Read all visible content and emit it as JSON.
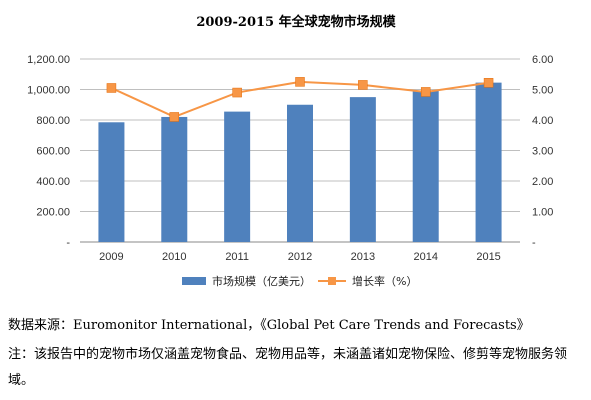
{
  "chart_data": {
    "type": "bar",
    "title": "2009-2015 年全球宠物市场规模",
    "categories": [
      "2009",
      "2010",
      "2011",
      "2012",
      "2013",
      "2014",
      "2015"
    ],
    "series": [
      {
        "name": "市场规模（亿美元）",
        "type": "bar",
        "axis": "left",
        "values": [
          785,
          820,
          855,
          900,
          950,
          990,
          1045
        ]
      },
      {
        "name": "增长率（%）",
        "type": "line",
        "axis": "right",
        "values": [
          5.05,
          4.1,
          4.9,
          5.25,
          5.15,
          4.92,
          5.22
        ]
      }
    ],
    "left_axis": {
      "ylim": [
        0,
        1200
      ],
      "ticks": [
        "-",
        "200.00",
        "400.00",
        "600.00",
        "800.00",
        "1,000.00",
        "1,200.00"
      ]
    },
    "right_axis": {
      "ylim": [
        0,
        6
      ],
      "ticks": [
        "-",
        "1.00",
        "2.00",
        "3.00",
        "4.00",
        "5.00",
        "6.00"
      ]
    },
    "grid": true,
    "legend_position": "bottom",
    "colors": {
      "bar": "#4f81bd",
      "line": "#f79646"
    }
  },
  "source": {
    "label": "数据来源：",
    "text": "Euromonitor International，《Global Pet Care Trends and Forecasts》"
  },
  "note": {
    "text": "注：该报告中的宠物市场仅涵盖宠物食品、宠物用品等，未涵盖诸如宠物保险、修剪等宠物服务领域。"
  }
}
